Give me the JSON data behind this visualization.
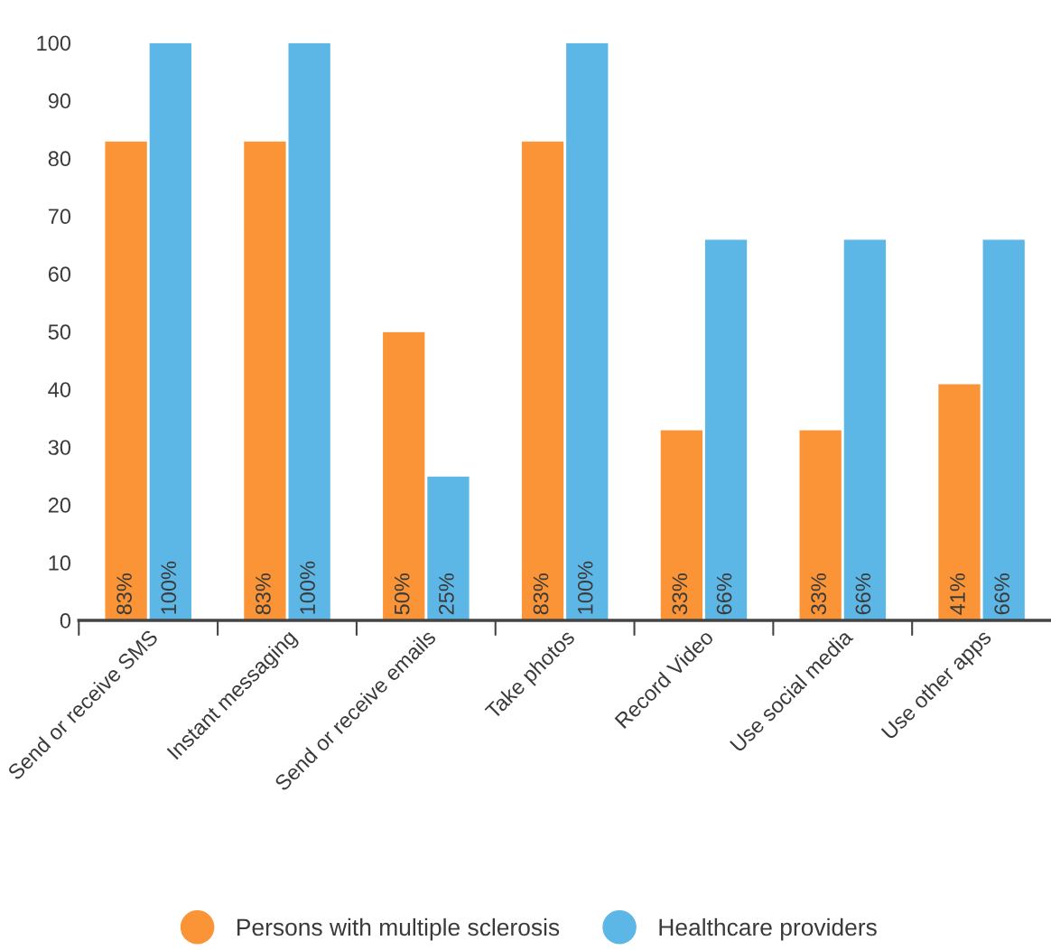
{
  "chart_data": {
    "type": "bar",
    "categories": [
      "Send or receive SMS",
      "Instant messaging",
      "Send or receive emails",
      "Take photos",
      "Record Video",
      "Use social media",
      "Use other apps"
    ],
    "series": [
      {
        "name": "Persons with multiple sclerosis",
        "color": "#fb9437",
        "values": [
          83,
          83,
          50,
          83,
          33,
          33,
          41
        ],
        "value_labels": [
          "83%",
          "83%",
          "50%",
          "83%",
          "33%",
          "33%",
          "41%"
        ]
      },
      {
        "name": "Healthcare providers",
        "color": "#5db7e6",
        "values": [
          100,
          100,
          25,
          100,
          66,
          66,
          66
        ],
        "value_labels": [
          "100%",
          "100%",
          "25%",
          "100%",
          "66%",
          "66%",
          "66%"
        ]
      }
    ],
    "ylim": [
      0,
      100
    ],
    "yticks": [
      0,
      10,
      20,
      30,
      40,
      50,
      60,
      70,
      80,
      90,
      100
    ],
    "grid": false,
    "legend": "bottom"
  }
}
